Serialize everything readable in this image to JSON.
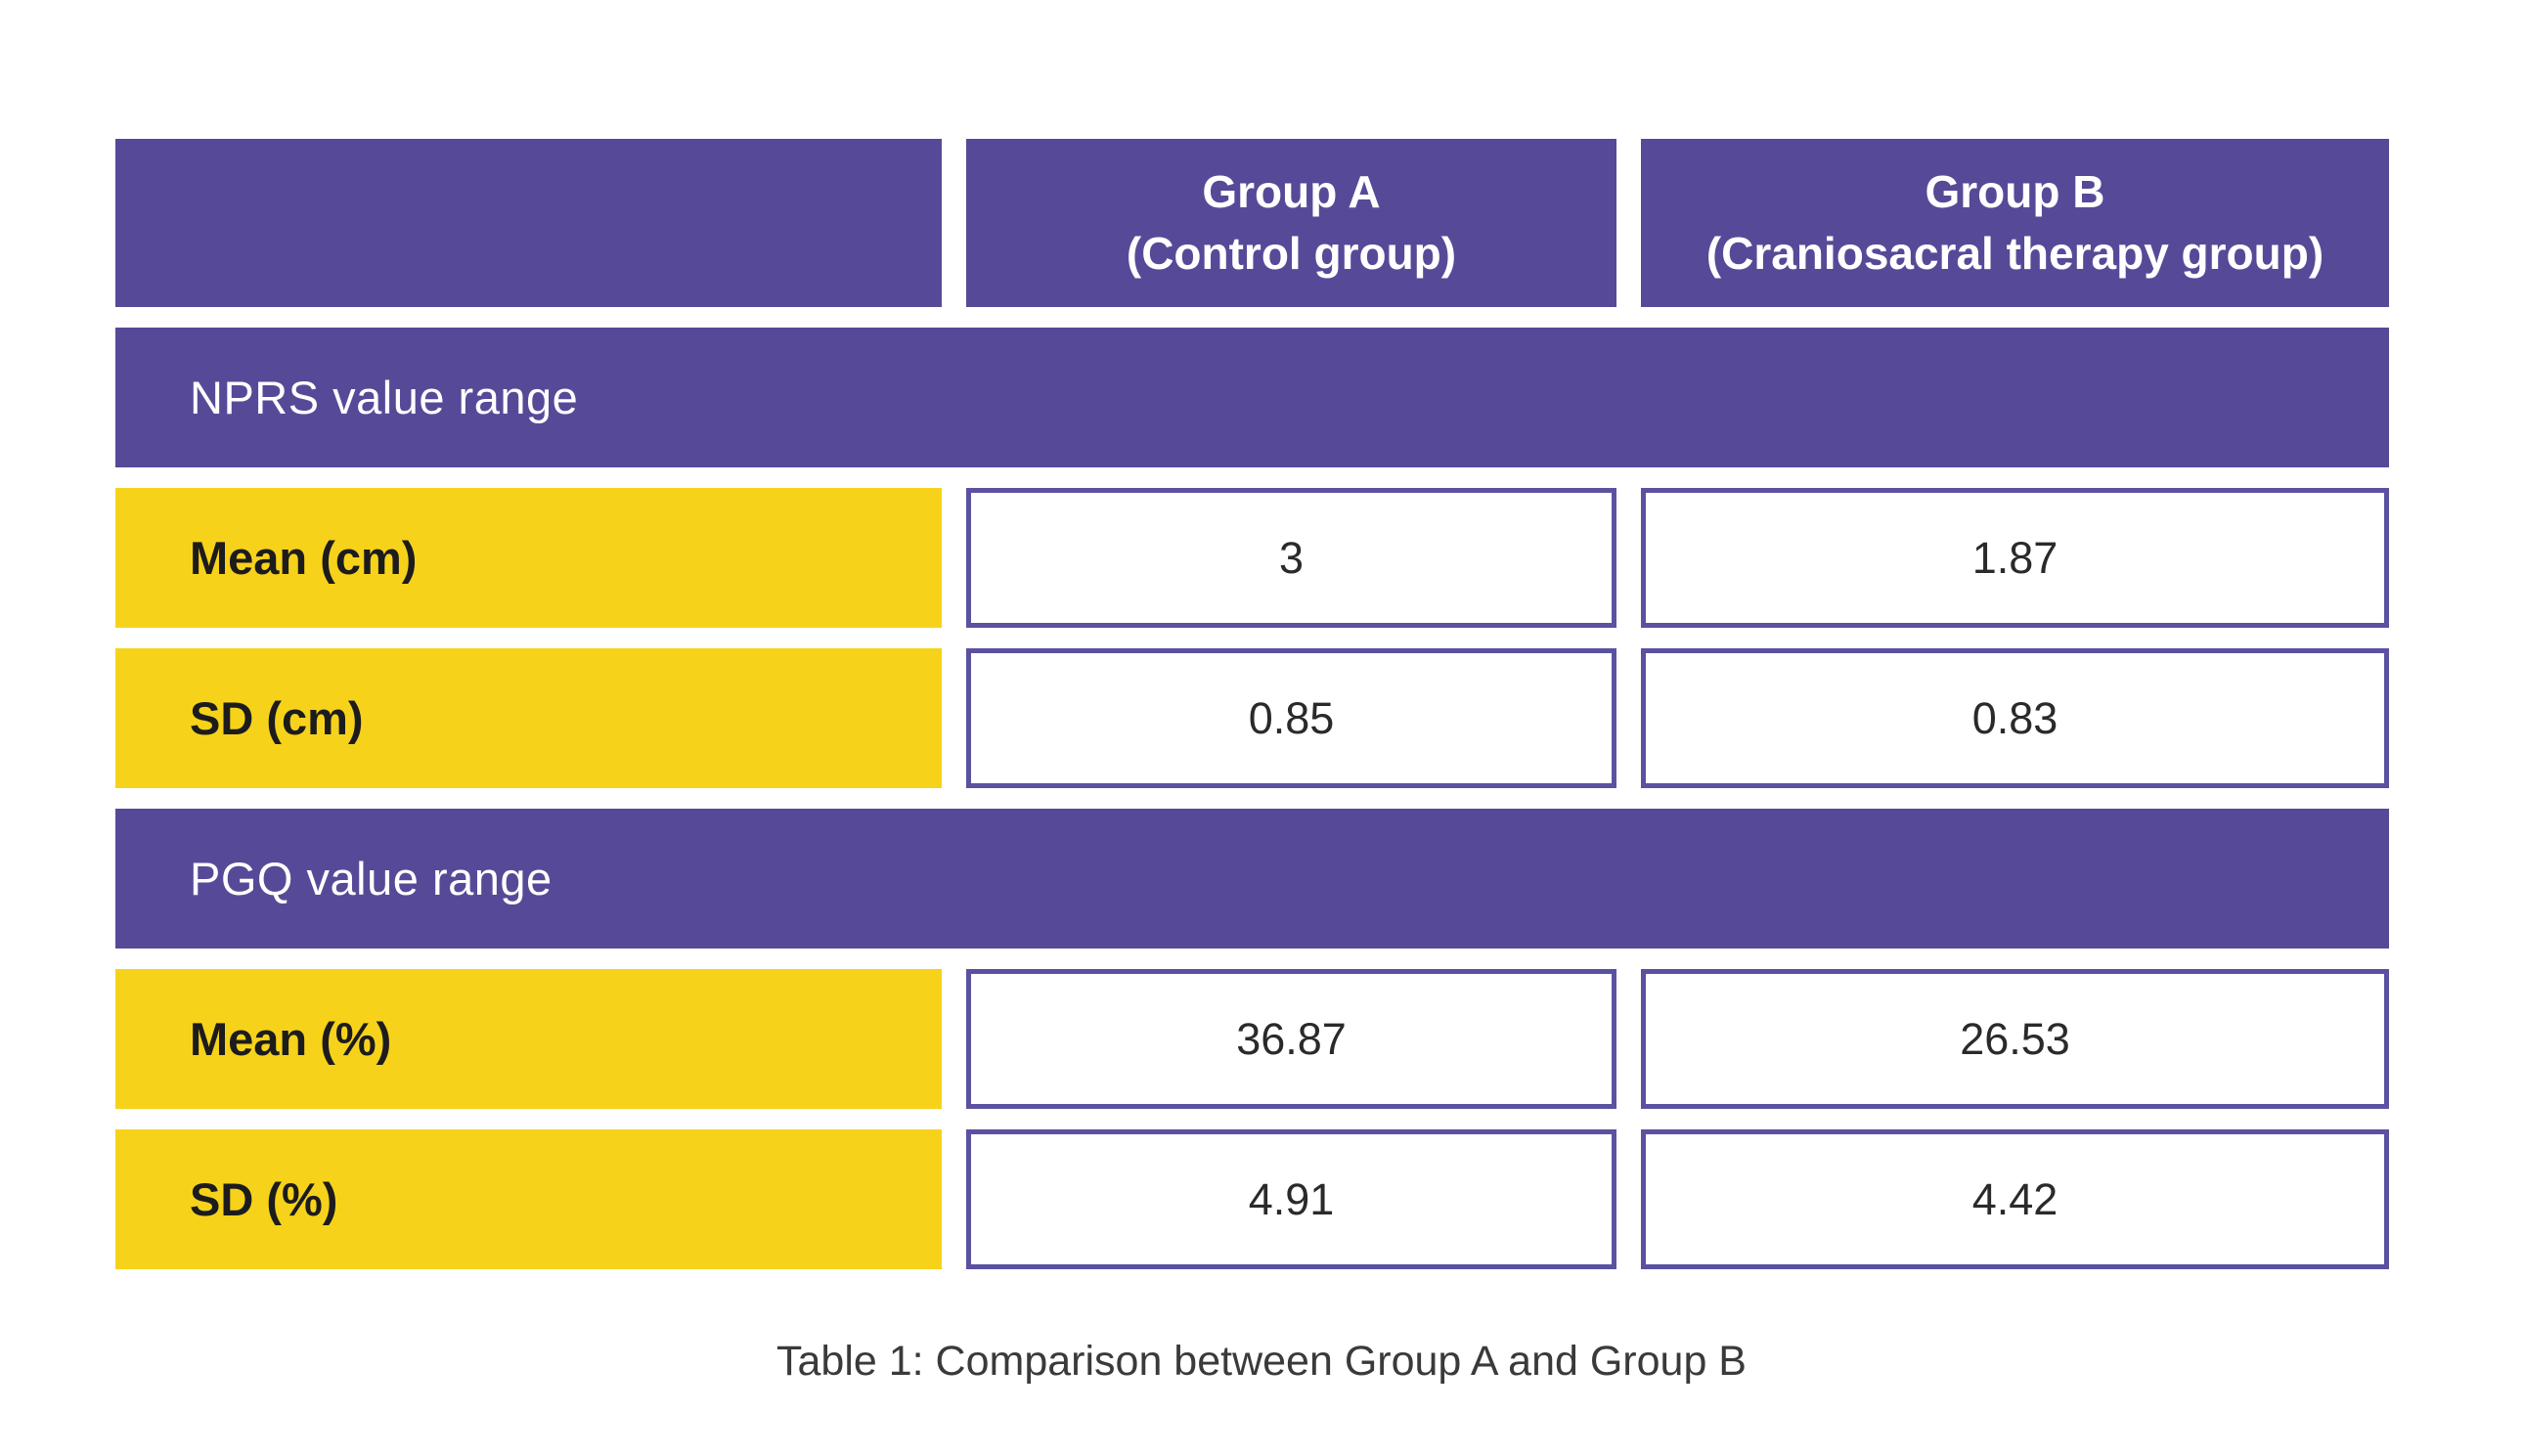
{
  "colors": {
    "header_and_banner_fill": "#564a98",
    "value_cell_border": "#5b51a1",
    "row_label_fill": "#f7d21a",
    "text_on_purple": "#ffffff",
    "row_label_text": "#1c1c1c",
    "value_text": "#2a2a2a",
    "caption_text": "#3a3a3a",
    "page_background": "#ffffff"
  },
  "table": {
    "caption": "Table 1: Comparison between Group A and Group B",
    "columns": [
      {
        "line1": "",
        "line2": ""
      },
      {
        "line1": "Group A",
        "line2": "(Control group)"
      },
      {
        "line1": "Group B",
        "line2": "(Craniosacral therapy group)"
      }
    ],
    "sections": [
      {
        "title": "NPRS value range",
        "rows": [
          {
            "label": "Mean (cm)",
            "group_a": "3",
            "group_b": "1.87"
          },
          {
            "label": "SD (cm)",
            "group_a": "0.85",
            "group_b": "0.83"
          }
        ]
      },
      {
        "title": "PGQ value range",
        "rows": [
          {
            "label": "Mean (%)",
            "group_a": "36.87",
            "group_b": "26.53"
          },
          {
            "label": "SD (%)",
            "group_a": "4.91",
            "group_b": "4.42"
          }
        ]
      }
    ]
  },
  "chart_data": {
    "type": "table",
    "title": "Table 1: Comparison between Group A and Group B",
    "columns": [
      "",
      "Group A (Control group)",
      "Group B (Craniosacral therapy group)"
    ],
    "sections": [
      {
        "section": "NPRS value range",
        "rows": [
          {
            "metric": "Mean (cm)",
            "group_a": 3,
            "group_b": 1.87
          },
          {
            "metric": "SD (cm)",
            "group_a": 0.85,
            "group_b": 0.83
          }
        ]
      },
      {
        "section": "PGQ value range",
        "rows": [
          {
            "metric": "Mean (%)",
            "group_a": 36.87,
            "group_b": 26.53
          },
          {
            "metric": "SD (%)",
            "group_a": 4.91,
            "group_b": 4.42
          }
        ]
      }
    ],
    "layout": {
      "style": "banded infographic table",
      "section_banner_color": "#564a98",
      "label_color": "#f7d21a"
    }
  }
}
